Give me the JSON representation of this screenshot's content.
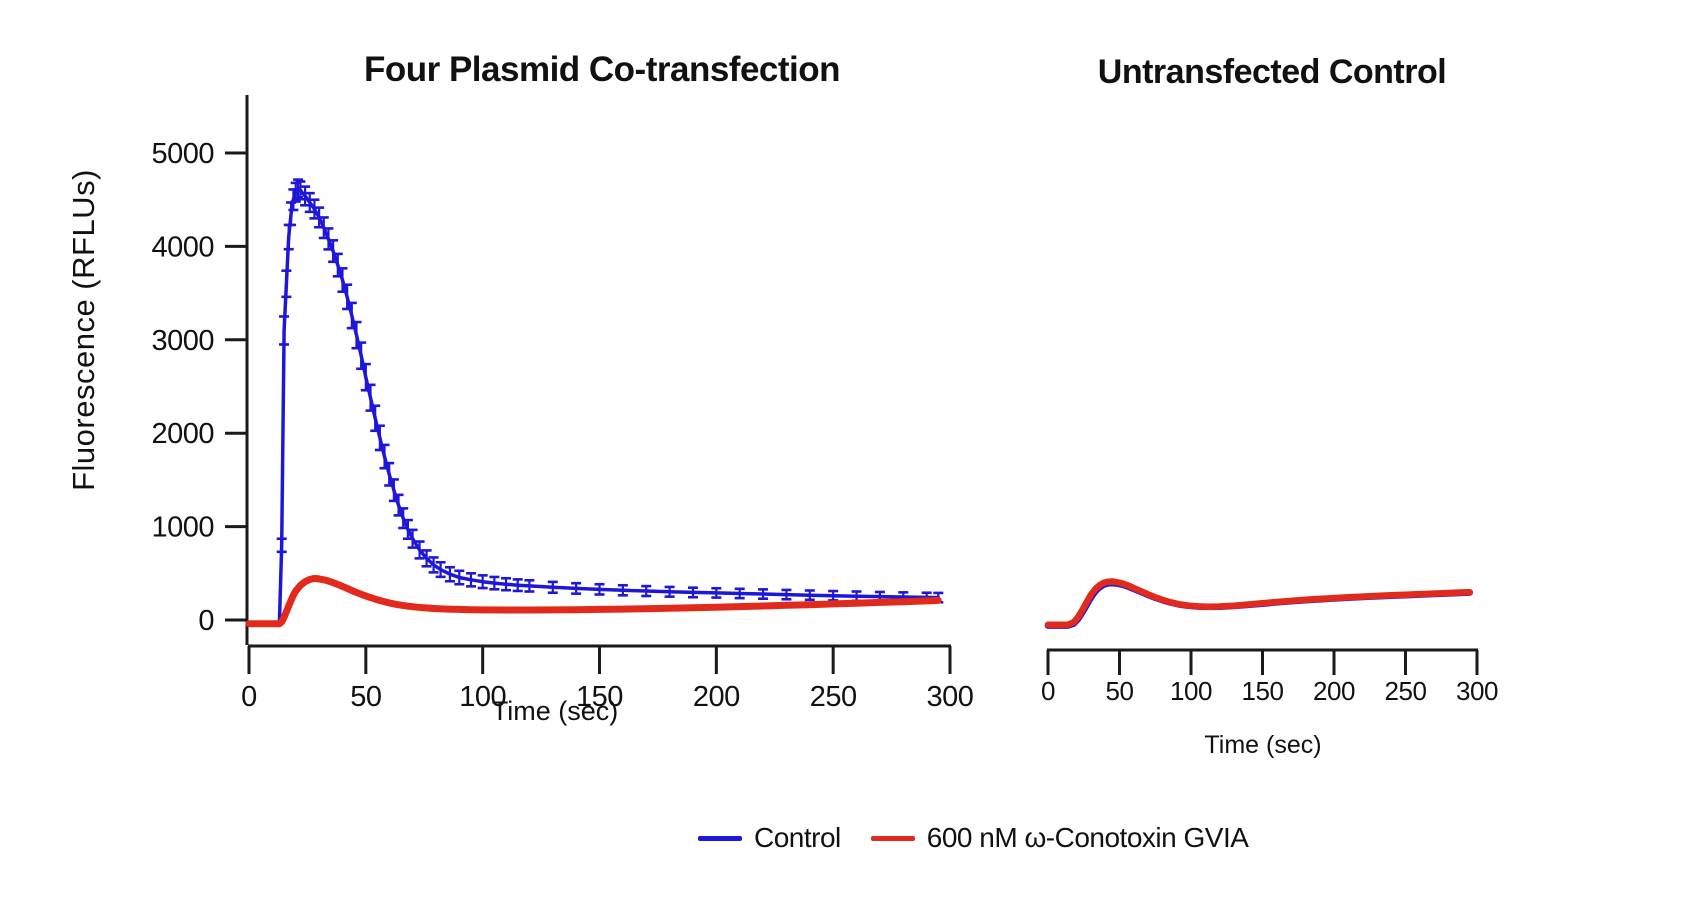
{
  "figure": {
    "left_panel_title": "Four Plasmid Co-transfection",
    "right_panel_title": "Untransfected Control"
  },
  "legend": {
    "position": "bottom-center",
    "items": [
      {
        "label": "Control",
        "color": "#1f17d8"
      },
      {
        "label": "600 nM ω-Conotoxin GVIA",
        "color": "#e22a1c"
      }
    ]
  },
  "colors": {
    "control_blue": "#1f17d8",
    "conotoxin_red": "#e22a1c",
    "axis_black": "#1a1a1a"
  },
  "chart_data": [
    {
      "type": "line",
      "title": "Four Plasmid Co-transfection",
      "xlabel": "Time (sec)",
      "ylabel": "Fluorescence (RFLUs)",
      "xlim": [
        0,
        300
      ],
      "ylim": [
        0,
        5000
      ],
      "x_ticks": [
        0,
        50,
        100,
        150,
        200,
        250,
        300
      ],
      "y_ticks": [
        0,
        1000,
        2000,
        3000,
        4000,
        5000
      ],
      "grid": false,
      "series": [
        {
          "key": "control",
          "name": "Control",
          "color": "#1f17d8",
          "width": 3.5,
          "x": [
            0,
            5,
            10,
            13,
            14,
            15,
            16,
            17,
            18,
            19,
            20,
            21,
            22,
            24,
            26,
            28,
            30,
            32,
            34,
            36,
            38,
            40,
            42,
            44,
            46,
            48,
            50,
            52,
            54,
            56,
            58,
            60,
            62,
            64,
            66,
            68,
            70,
            73,
            76,
            79,
            82,
            86,
            90,
            95,
            100,
            105,
            110,
            115,
            120,
            130,
            140,
            150,
            160,
            170,
            180,
            190,
            200,
            210,
            220,
            230,
            240,
            250,
            260,
            270,
            280,
            290,
            295
          ],
          "y": [
            -30,
            -30,
            -30,
            -30,
            800,
            3100,
            3600,
            4100,
            4350,
            4500,
            4580,
            4620,
            4600,
            4540,
            4470,
            4400,
            4310,
            4200,
            4080,
            3950,
            3800,
            3640,
            3460,
            3260,
            3050,
            2830,
            2600,
            2380,
            2160,
            1950,
            1750,
            1560,
            1390,
            1230,
            1090,
            970,
            870,
            750,
            660,
            590,
            540,
            490,
            455,
            430,
            410,
            395,
            383,
            373,
            365,
            350,
            338,
            328,
            318,
            310,
            302,
            295,
            290,
            284,
            278,
            272,
            266,
            260,
            255,
            250,
            246,
            242,
            240
          ],
          "error": [
            10,
            10,
            10,
            10,
            70,
            150,
            140,
            130,
            120,
            110,
            100,
            95,
            95,
            100,
            100,
            100,
            105,
            110,
            112,
            115,
            120,
            125,
            130,
            135,
            140,
            140,
            140,
            138,
            134,
            130,
            125,
            120,
            115,
            110,
            105,
            100,
            95,
            90,
            85,
            80,
            78,
            75,
            72,
            70,
            68,
            66,
            64,
            62,
            60,
            58,
            56,
            55,
            54,
            53,
            52,
            51,
            50,
            50,
            50,
            50,
            50,
            50,
            50,
            50,
            50,
            50,
            50
          ]
        },
        {
          "key": "conotoxin",
          "name": "600 nM ω-Conotoxin GVIA",
          "color": "#e22a1c",
          "width": 7,
          "x": [
            0,
            5,
            10,
            13,
            14,
            15,
            16,
            17,
            18,
            19,
            20,
            22,
            24,
            26,
            28,
            30,
            33,
            36,
            39,
            42,
            45,
            48,
            51,
            54,
            57,
            60,
            64,
            68,
            72,
            76,
            80,
            85,
            90,
            95,
            100,
            110,
            120,
            130,
            140,
            150,
            160,
            170,
            180,
            190,
            200,
            210,
            220,
            230,
            240,
            250,
            260,
            270,
            280,
            290,
            295
          ],
          "y": [
            -40,
            -40,
            -40,
            -40,
            -20,
            30,
            90,
            150,
            210,
            265,
            310,
            370,
            410,
            435,
            445,
            440,
            425,
            400,
            370,
            338,
            305,
            275,
            248,
            224,
            202,
            183,
            163,
            148,
            137,
            128,
            122,
            117,
            113,
            110,
            108,
            107,
            107,
            108,
            110,
            113,
            117,
            121,
            126,
            131,
            137,
            143,
            150,
            157,
            164,
            172,
            180,
            188,
            196,
            205,
            210
          ]
        }
      ]
    },
    {
      "type": "line",
      "title": "Untransfected Control",
      "xlabel": "Time (sec)",
      "ylabel": "",
      "xlim": [
        0,
        300
      ],
      "ylim": [
        0,
        5000
      ],
      "x_ticks": [
        0,
        50,
        100,
        150,
        200,
        250,
        300
      ],
      "y_ticks": [],
      "grid": false,
      "series": [
        {
          "key": "control",
          "name": "Control",
          "color": "#1f17d8",
          "width": 6.5,
          "x": [
            0,
            5,
            10,
            14,
            18,
            21,
            24,
            27,
            30,
            33,
            36,
            39,
            42,
            45,
            48,
            52,
            56,
            60,
            65,
            70,
            75,
            80,
            86,
            92,
            98,
            105,
            112,
            120,
            130,
            140,
            150,
            160,
            170,
            180,
            190,
            200,
            210,
            220,
            230,
            240,
            250,
            260,
            270,
            280,
            290,
            295
          ],
          "y": [
            -60,
            -60,
            -60,
            -60,
            -40,
            10,
            80,
            160,
            240,
            305,
            350,
            378,
            392,
            395,
            390,
            378,
            358,
            332,
            300,
            268,
            238,
            212,
            185,
            165,
            152,
            143,
            140,
            142,
            150,
            162,
            175,
            188,
            200,
            211,
            221,
            230,
            238,
            246,
            253,
            260,
            266,
            272,
            278,
            284,
            290,
            293
          ]
        },
        {
          "key": "conotoxin",
          "name": "600 nM ω-Conotoxin GVIA",
          "color": "#e22a1c",
          "width": 6.5,
          "x": [
            0,
            5,
            10,
            14,
            18,
            21,
            24,
            27,
            30,
            33,
            36,
            39,
            42,
            45,
            48,
            52,
            56,
            60,
            65,
            70,
            75,
            80,
            86,
            92,
            98,
            105,
            112,
            120,
            130,
            140,
            150,
            160,
            170,
            180,
            190,
            200,
            210,
            220,
            230,
            240,
            250,
            260,
            270,
            280,
            290,
            295
          ],
          "y": [
            -50,
            -50,
            -50,
            -50,
            -25,
            30,
            105,
            190,
            270,
            330,
            372,
            398,
            410,
            412,
            405,
            392,
            370,
            342,
            308,
            274,
            243,
            216,
            188,
            168,
            154,
            146,
            142,
            145,
            153,
            166,
            180,
            193,
            205,
            216,
            226,
            235,
            243,
            251,
            258,
            265,
            271,
            277,
            283,
            289,
            295,
            298
          ]
        }
      ]
    }
  ]
}
